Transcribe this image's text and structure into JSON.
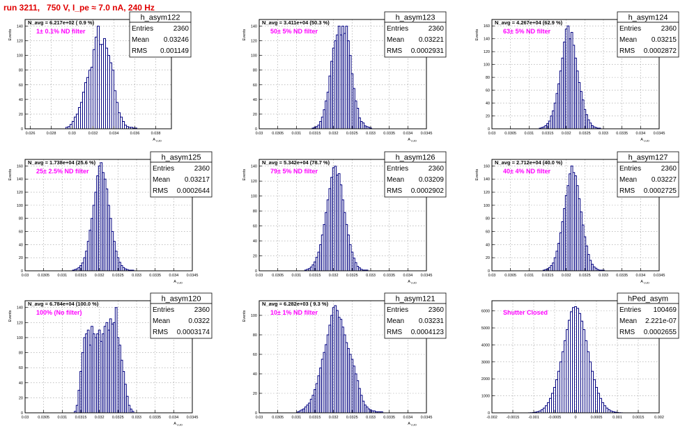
{
  "page": {
    "title": "run 3211,   750 V, I_pe ≈ 7.0 nA, 240 Hz"
  },
  "colors": {
    "title": "#e00000",
    "label": "#ff00ff",
    "histogram": "#000080",
    "frame": "#000000",
    "grid": "#9a9a9a"
  },
  "chart_data": [
    {
      "type": "bar",
      "name": "h_asym122",
      "nlabel": "N_avg = 6.217e+02 ( 0.9 %)",
      "annotation": "1± 0.1% ND filter",
      "stats": [
        [
          "Entries",
          "2360"
        ],
        [
          "Mean",
          "0.03246"
        ],
        [
          "RMS",
          "0.001149"
        ]
      ],
      "xlabel": "A_LUD",
      "ylabel": "Events",
      "xlim": [
        0.0255,
        0.0395
      ],
      "ylim": [
        0,
        149
      ],
      "xticks": [
        "0.026",
        "0.028",
        "0.03",
        "0.032",
        "0.034",
        "0.036",
        "0.038"
      ],
      "yticks": [
        0,
        20,
        40,
        60,
        80,
        100,
        120,
        140
      ],
      "x": [
        0.0295,
        0.0297,
        0.0299,
        0.0301,
        0.0303,
        0.0305,
        0.0307,
        0.0309,
        0.0311,
        0.0313,
        0.0315,
        0.0317,
        0.0319,
        0.0321,
        0.0323,
        0.0325,
        0.0327,
        0.0329,
        0.0331,
        0.0333,
        0.0335,
        0.0337,
        0.0339,
        0.0341,
        0.0343,
        0.0345,
        0.0347,
        0.0349,
        0.0351,
        0.0353,
        0.0355,
        0.0357,
        0.0359,
        0.0361
      ],
      "values": [
        2,
        3,
        6,
        10,
        16,
        20,
        29,
        36,
        50,
        63,
        70,
        80,
        84,
        108,
        125,
        140,
        115,
        115,
        123,
        110,
        100,
        90,
        80,
        52,
        36,
        22,
        16,
        10,
        5,
        3,
        2,
        2,
        1,
        1
      ]
    },
    {
      "type": "bar",
      "name": "h_asym123",
      "nlabel": "N_avg = 3.411e+04 (50.3 %)",
      "annotation": "50± 5% ND filter",
      "stats": [
        [
          "Entries",
          "2360"
        ],
        [
          "Mean",
          "0.03221"
        ],
        [
          "RMS",
          "0.0002931"
        ]
      ],
      "xlabel": "A_LUD",
      "ylabel": "Events",
      "xlim": [
        0.03,
        0.0345
      ],
      "ylim": [
        0,
        149
      ],
      "xticks": [
        "0.03",
        "0.0305",
        "0.031",
        "0.0315",
        "0.032",
        "0.0325",
        "0.033",
        "0.0335",
        "0.034",
        "0.0345"
      ],
      "yticks": [
        0,
        20,
        40,
        60,
        80,
        100,
        120,
        140
      ],
      "x": [
        0.03145,
        0.0315,
        0.03155,
        0.0316,
        0.03165,
        0.0317,
        0.03175,
        0.0318,
        0.03185,
        0.0319,
        0.03195,
        0.032,
        0.03205,
        0.0321,
        0.03215,
        0.0322,
        0.03225,
        0.0323,
        0.03235,
        0.0324,
        0.03245,
        0.0325,
        0.03255,
        0.0326,
        0.03265,
        0.0327,
        0.03275,
        0.0328,
        0.03285,
        0.0329,
        0.03295,
        0.033
      ],
      "values": [
        1,
        2,
        3,
        5,
        10,
        16,
        26,
        38,
        50,
        72,
        92,
        110,
        120,
        128,
        140,
        128,
        140,
        130,
        140,
        120,
        100,
        75,
        55,
        38,
        28,
        15,
        10,
        8,
        4,
        3,
        2,
        1
      ]
    },
    {
      "type": "bar",
      "name": "h_asym124",
      "nlabel": "N_avg = 4.267e+04 (62.9 %)",
      "annotation": "63± 5% ND filter",
      "stats": [
        [
          "Entries",
          "2360"
        ],
        [
          "Mean",
          "0.03215"
        ],
        [
          "RMS",
          "0.0002872"
        ]
      ],
      "xlabel": "A_LUD",
      "ylabel": "Events",
      "xlim": [
        0.03,
        0.0345
      ],
      "ylim": [
        0,
        170
      ],
      "xticks": [
        "0.03",
        "0.0305",
        "0.031",
        "0.0315",
        "0.032",
        "0.0325",
        "0.033",
        "0.0335",
        "0.034",
        "0.0345"
      ],
      "yticks": [
        0,
        20,
        40,
        60,
        80,
        100,
        120,
        140,
        160
      ],
      "x": [
        0.0313,
        0.03135,
        0.0314,
        0.03145,
        0.0315,
        0.03155,
        0.0316,
        0.03165,
        0.0317,
        0.03175,
        0.0318,
        0.03185,
        0.0319,
        0.03195,
        0.032,
        0.03205,
        0.0321,
        0.03215,
        0.0322,
        0.03225,
        0.0323,
        0.03235,
        0.0324,
        0.03245,
        0.0325,
        0.03255,
        0.0326,
        0.03265,
        0.0327,
        0.03275,
        0.0328,
        0.03285,
        0.0329
      ],
      "values": [
        1,
        2,
        3,
        5,
        8,
        12,
        20,
        28,
        40,
        55,
        70,
        90,
        110,
        135,
        155,
        160,
        140,
        150,
        130,
        110,
        90,
        72,
        58,
        45,
        30,
        22,
        14,
        9,
        5,
        3,
        2,
        1,
        1
      ]
    },
    {
      "type": "bar",
      "name": "h_asym125",
      "nlabel": "N_avg = 1.738e+04 (25.6 %)",
      "annotation": "25± 2.5% ND filter",
      "stats": [
        [
          "Entries",
          "2360"
        ],
        [
          "Mean",
          "0.03217"
        ],
        [
          "RMS",
          "0.0002644"
        ]
      ],
      "xlabel": "A_LUD",
      "ylabel": "Events",
      "xlim": [
        0.03,
        0.0345
      ],
      "ylim": [
        0,
        170
      ],
      "xticks": [
        "0.03",
        "0.0305",
        "0.031",
        "0.0315",
        "0.032",
        "0.0325",
        "0.033",
        "0.0335",
        "0.034",
        "0.0345"
      ],
      "yticks": [
        0,
        20,
        40,
        60,
        80,
        100,
        120,
        140,
        160
      ],
      "x": [
        0.0313,
        0.03135,
        0.0314,
        0.03145,
        0.0315,
        0.03155,
        0.0316,
        0.03165,
        0.0317,
        0.03175,
        0.0318,
        0.03185,
        0.0319,
        0.03195,
        0.032,
        0.03205,
        0.0321,
        0.03215,
        0.0322,
        0.03225,
        0.0323,
        0.03235,
        0.0324,
        0.03245,
        0.0325,
        0.03255,
        0.0326,
        0.03265,
        0.0327,
        0.03275,
        0.0328,
        0.03285,
        0.0329
      ],
      "values": [
        1,
        2,
        3,
        5,
        8,
        12,
        20,
        30,
        45,
        62,
        80,
        100,
        120,
        145,
        160,
        165,
        150,
        140,
        125,
        100,
        80,
        60,
        45,
        30,
        20,
        13,
        8,
        5,
        3,
        2,
        1,
        1,
        1
      ]
    },
    {
      "type": "bar",
      "name": "h_asym126",
      "nlabel": "N_avg = 5.342e+04 (78.7 %)",
      "annotation": "79± 5% ND filter",
      "stats": [
        [
          "Entries",
          "2360"
        ],
        [
          "Mean",
          "0.03209"
        ],
        [
          "RMS",
          "0.0002902"
        ]
      ],
      "xlabel": "A_LUD",
      "ylabel": "Events",
      "xlim": [
        0.03,
        0.0345
      ],
      "ylim": [
        0,
        149
      ],
      "xticks": [
        "0.03",
        "0.0305",
        "0.031",
        "0.0315",
        "0.032",
        "0.0325",
        "0.033",
        "0.0335",
        "0.034",
        "0.0345"
      ],
      "yticks": [
        0,
        20,
        40,
        60,
        80,
        100,
        120,
        140
      ],
      "x": [
        0.03125,
        0.0313,
        0.03135,
        0.0314,
        0.03145,
        0.0315,
        0.03155,
        0.0316,
        0.03165,
        0.0317,
        0.03175,
        0.0318,
        0.03185,
        0.0319,
        0.03195,
        0.032,
        0.03205,
        0.0321,
        0.03215,
        0.0322,
        0.03225,
        0.0323,
        0.03235,
        0.0324,
        0.03245,
        0.0325,
        0.03255,
        0.0326,
        0.03265,
        0.0327,
        0.03275,
        0.0328,
        0.03285,
        0.0329
      ],
      "values": [
        1,
        2,
        3,
        5,
        8,
        12,
        18,
        25,
        35,
        48,
        62,
        78,
        95,
        110,
        125,
        138,
        140,
        128,
        130,
        115,
        95,
        78,
        62,
        48,
        35,
        25,
        17,
        11,
        6,
        4,
        2,
        1,
        1,
        1
      ]
    },
    {
      "type": "bar",
      "name": "h_asym127",
      "nlabel": "N_avg = 2.712e+04 (40.0 %)",
      "annotation": "40± 4% ND filter",
      "stats": [
        [
          "Entries",
          "2360"
        ],
        [
          "Mean",
          "0.03227"
        ],
        [
          "RMS",
          "0.0002725"
        ]
      ],
      "xlabel": "A_LUD",
      "ylabel": "Events",
      "xlim": [
        0.03,
        0.0345
      ],
      "ylim": [
        0,
        170
      ],
      "xticks": [
        "0.03",
        "0.0305",
        "0.031",
        "0.0315",
        "0.032",
        "0.0325",
        "0.033",
        "0.0335",
        "0.034",
        "0.0345"
      ],
      "yticks": [
        0,
        20,
        40,
        60,
        80,
        100,
        120,
        140,
        160
      ],
      "x": [
        0.0314,
        0.03145,
        0.0315,
        0.03155,
        0.0316,
        0.03165,
        0.0317,
        0.03175,
        0.0318,
        0.03185,
        0.0319,
        0.03195,
        0.032,
        0.03205,
        0.0321,
        0.03215,
        0.0322,
        0.03225,
        0.0323,
        0.03235,
        0.0324,
        0.03245,
        0.0325,
        0.03255,
        0.0326,
        0.03265,
        0.0327,
        0.03275,
        0.0328,
        0.03285,
        0.0329,
        0.03295,
        0.033
      ],
      "values": [
        1,
        2,
        3,
        5,
        8,
        12,
        20,
        30,
        42,
        58,
        75,
        95,
        115,
        130,
        148,
        160,
        150,
        145,
        130,
        110,
        90,
        70,
        52,
        38,
        25,
        16,
        10,
        6,
        4,
        2,
        1,
        1,
        1
      ]
    },
    {
      "type": "bar",
      "name": "h_asym120",
      "nlabel": "N_avg = 6.784e+04 (100.0 %)",
      "annotation": "100% (No filter)",
      "stats": [
        [
          "Entries",
          "2360"
        ],
        [
          "Mean",
          "0.0322"
        ],
        [
          "RMS",
          "0.0003174"
        ]
      ],
      "xlabel": "A_LUD",
      "ylabel": "Events",
      "xlim": [
        0.03,
        0.0345
      ],
      "ylim": [
        0,
        149
      ],
      "xticks": [
        "0.03",
        "0.0305",
        "0.031",
        "0.0315",
        "0.032",
        "0.0325",
        "0.033",
        "0.0335",
        "0.034",
        "0.0345"
      ],
      "yticks": [
        0,
        20,
        40,
        60,
        80,
        100,
        120,
        140
      ],
      "x": [
        0.03135,
        0.0314,
        0.03145,
        0.0315,
        0.03155,
        0.0316,
        0.03165,
        0.0317,
        0.03175,
        0.0318,
        0.03185,
        0.0319,
        0.03195,
        0.032,
        0.03205,
        0.0321,
        0.03215,
        0.0322,
        0.03225,
        0.0323,
        0.03235,
        0.0324,
        0.03245,
        0.0325,
        0.03255,
        0.0326,
        0.03265,
        0.0327,
        0.03275,
        0.0328,
        0.03285,
        0.0329
      ],
      "values": [
        2,
        10,
        30,
        55,
        80,
        100,
        105,
        110,
        90,
        115,
        105,
        100,
        105,
        110,
        95,
        105,
        115,
        120,
        110,
        125,
        118,
        120,
        140,
        100,
        90,
        70,
        55,
        38,
        22,
        10,
        5,
        2
      ]
    },
    {
      "type": "bar",
      "name": "h_asym121",
      "nlabel": "N_avg = 6.282e+03 ( 9.3 %)",
      "annotation": "10± 1% ND filter",
      "stats": [
        [
          "Entries",
          "2360"
        ],
        [
          "Mean",
          "0.03231"
        ],
        [
          "RMS",
          "0.0004123"
        ]
      ],
      "xlabel": "A_LUD",
      "ylabel": "Events",
      "xlim": [
        0.03,
        0.0345
      ],
      "ylim": [
        0,
        115
      ],
      "xticks": [
        "0.03",
        "0.0305",
        "0.031",
        "0.0315",
        "0.032",
        "0.0325",
        "0.033",
        "0.0335",
        "0.034",
        "0.0345"
      ],
      "yticks": [
        0,
        20,
        40,
        60,
        80,
        100
      ],
      "x": [
        0.03105,
        0.0311,
        0.03115,
        0.0312,
        0.03125,
        0.0313,
        0.03135,
        0.0314,
        0.03145,
        0.0315,
        0.03155,
        0.0316,
        0.03165,
        0.0317,
        0.03175,
        0.0318,
        0.03185,
        0.0319,
        0.03195,
        0.032,
        0.03205,
        0.0321,
        0.03215,
        0.0322,
        0.03225,
        0.0323,
        0.03235,
        0.0324,
        0.03245,
        0.0325,
        0.03255,
        0.0326,
        0.03265,
        0.0327,
        0.03275,
        0.0328,
        0.03285,
        0.0329,
        0.03295,
        0.033,
        0.03305,
        0.0331,
        0.03315,
        0.0332,
        0.03325,
        0.0333
      ],
      "values": [
        1,
        2,
        3,
        4,
        6,
        8,
        10,
        14,
        18,
        24,
        30,
        38,
        46,
        55,
        62,
        70,
        80,
        90,
        100,
        108,
        110,
        105,
        98,
        96,
        88,
        80,
        72,
        66,
        60,
        55,
        48,
        40,
        33,
        25,
        18,
        12,
        8,
        6,
        4,
        3,
        2,
        2,
        1,
        1,
        1,
        1
      ]
    },
    {
      "type": "bar",
      "name": "hPed_asym",
      "nlabel": "",
      "annotation": "Shutter Closed",
      "stats": [
        [
          "Entries",
          "100469"
        ],
        [
          "Mean",
          "2.221e-07"
        ],
        [
          "RMS",
          "0.0002655"
        ]
      ],
      "xlabel": "",
      "ylabel": "",
      "xlim": [
        -0.002,
        0.002
      ],
      "ylim": [
        0,
        6600
      ],
      "xticks": [
        "-0.002",
        "-0.0015",
        "-0.001",
        "-0.0005",
        "0",
        "0.0005",
        "0.001",
        "0.0015",
        "0.002"
      ],
      "yticks": [
        0,
        1000,
        2000,
        3000,
        4000,
        5000,
        6000
      ],
      "x": [
        -0.0011,
        -0.00105,
        -0.001,
        -0.00095,
        -0.0009,
        -0.00085,
        -0.0008,
        -0.00075,
        -0.0007,
        -0.00065,
        -0.0006,
        -0.00055,
        -0.0005,
        -0.00045,
        -0.0004,
        -0.00035,
        -0.0003,
        -0.00025,
        -0.0002,
        -0.00015,
        -0.0001,
        -5e-05,
        0,
        5e-05,
        0.0001,
        0.00015,
        0.0002,
        0.00025,
        0.0003,
        0.00035,
        0.0004,
        0.00045,
        0.0005,
        0.00055,
        0.0006,
        0.00065,
        0.0007,
        0.00075,
        0.0008,
        0.00085,
        0.0009,
        0.00095,
        0.001,
        0.00105,
        0.0011
      ],
      "values": [
        5,
        10,
        20,
        40,
        70,
        110,
        180,
        280,
        420,
        600,
        850,
        1150,
        1500,
        1950,
        2450,
        3000,
        3600,
        4250,
        4900,
        5450,
        5950,
        6200,
        6250,
        6150,
        5850,
        5400,
        4900,
        4250,
        3600,
        3000,
        2450,
        1950,
        1500,
        1150,
        850,
        600,
        420,
        280,
        180,
        110,
        70,
        40,
        20,
        10,
        5
      ]
    }
  ]
}
